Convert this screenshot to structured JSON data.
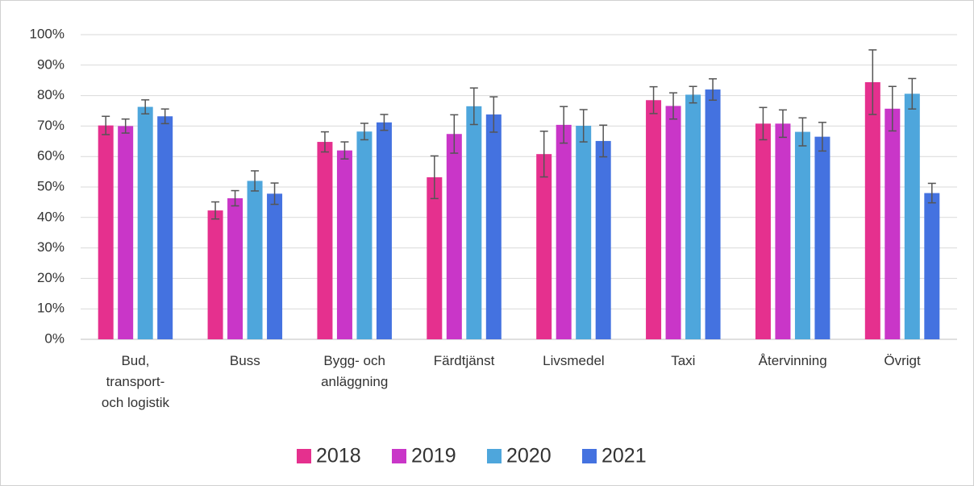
{
  "chart_data": {
    "type": "bar",
    "categories": [
      "Bud, transport- och logistik",
      "Buss",
      "Bygg- och anläggning",
      "Färdtjänst",
      "Livsmedel",
      "Taxi",
      "Återvinning",
      "Övrigt"
    ],
    "series": [
      {
        "name": "2018",
        "color": "#e5308e",
        "values": [
          70.2,
          42.3,
          64.8,
          53.2,
          60.8,
          78.5,
          70.8,
          84.4
        ],
        "errors": [
          3,
          2.8,
          3.3,
          7,
          7.5,
          4.4,
          5.3,
          10.6
        ]
      },
      {
        "name": "2019",
        "color": "#c936c8",
        "values": [
          70,
          46.3,
          62,
          67.4,
          70.4,
          76.6,
          70.8,
          75.7
        ],
        "errors": [
          2.3,
          2.5,
          2.8,
          6.3,
          6,
          4.3,
          4.5,
          7.3
        ]
      },
      {
        "name": "2020",
        "color": "#4ea6dc",
        "values": [
          76.3,
          52,
          68.2,
          76.5,
          70.1,
          80.3,
          68.1,
          80.6
        ],
        "errors": [
          2.3,
          3.3,
          2.7,
          6,
          5.3,
          2.7,
          4.6,
          5
        ]
      },
      {
        "name": "2021",
        "color": "#4472e0",
        "values": [
          73.2,
          47.8,
          71.2,
          73.8,
          65.1,
          82,
          66.5,
          48
        ],
        "errors": [
          2.4,
          3.5,
          2.6,
          5.8,
          5.2,
          3.5,
          4.7,
          3.2
        ]
      }
    ],
    "ylim": [
      0,
      100
    ],
    "yticks": [
      {
        "value": 0,
        "label": "0%"
      },
      {
        "value": 10,
        "label": "10%"
      },
      {
        "value": 20,
        "label": "20%"
      },
      {
        "value": 30,
        "label": "30%"
      },
      {
        "value": 40,
        "label": "40%"
      },
      {
        "value": 50,
        "label": "50%"
      },
      {
        "value": 60,
        "label": "60%"
      },
      {
        "value": 70,
        "label": "70%"
      },
      {
        "value": 80,
        "label": "80%"
      },
      {
        "value": 90,
        "label": "90%"
      },
      {
        "value": 100,
        "label": "100%"
      }
    ],
    "grid": true,
    "legend": "bottom"
  }
}
